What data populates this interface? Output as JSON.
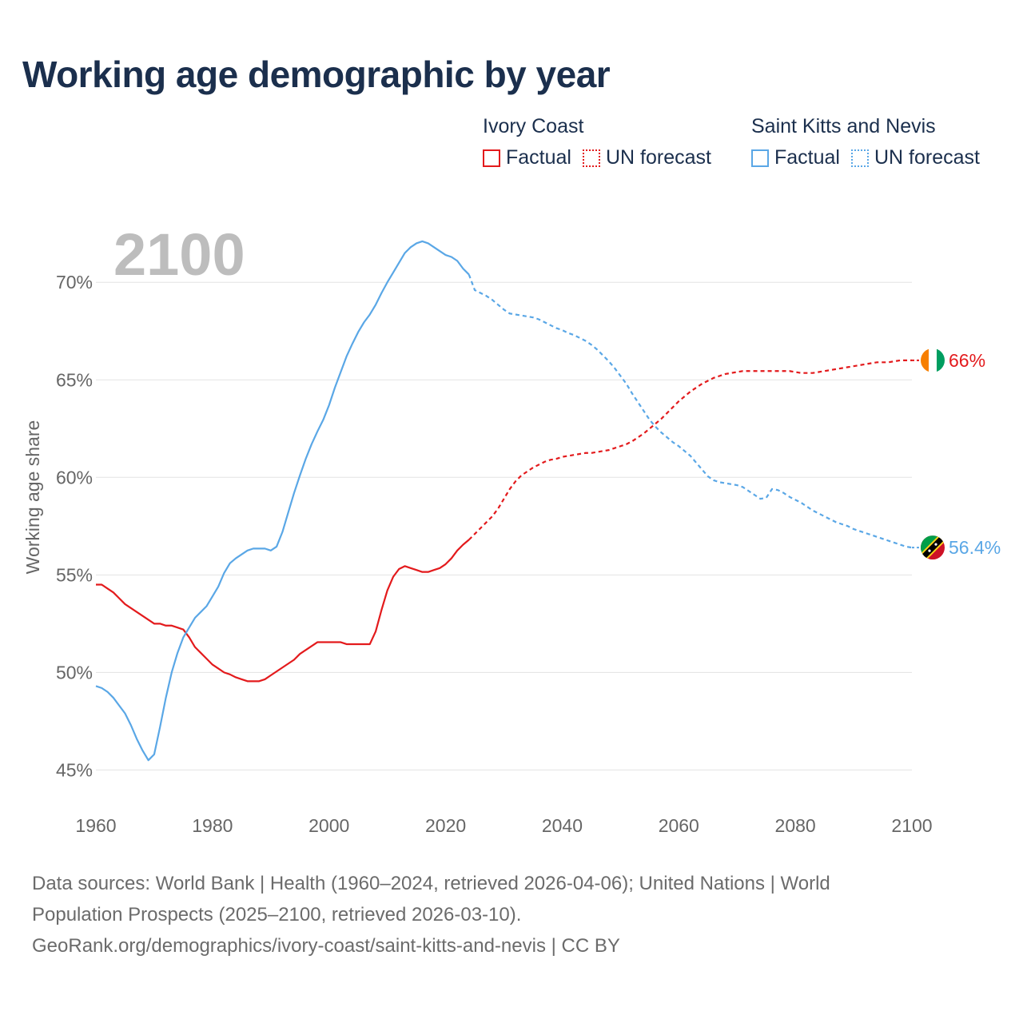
{
  "title": "Working age demographic by year",
  "legend": {
    "groups": [
      {
        "name": "Ivory Coast",
        "color": "#e31a1c",
        "items": [
          {
            "label": "Factual",
            "style": "solid"
          },
          {
            "label": "UN forecast",
            "style": "dotted"
          }
        ]
      },
      {
        "name": "Saint Kitts and Nevis",
        "color": "#5aa7e6",
        "items": [
          {
            "label": "Factual",
            "style": "solid"
          },
          {
            "label": "UN forecast",
            "style": "dotted"
          }
        ]
      }
    ]
  },
  "chart_data": {
    "type": "line",
    "year_label": "2100",
    "ylabel": "Working age share",
    "xlim": [
      1960,
      2100
    ],
    "ylim": [
      43.5,
      73
    ],
    "x_ticks": [
      "1960",
      "1980",
      "2000",
      "2020",
      "2040",
      "2060",
      "2080",
      "2100"
    ],
    "y_ticks": [
      {
        "value": 45,
        "label": "45%"
      },
      {
        "value": 50,
        "label": "50%"
      },
      {
        "value": 55,
        "label": "55%"
      },
      {
        "value": 60,
        "label": "60%"
      },
      {
        "value": 65,
        "label": "65%"
      },
      {
        "value": 70,
        "label": "70%"
      }
    ],
    "factual_until": 2024,
    "series": [
      {
        "name": "Ivory Coast",
        "color": "#e31a1c",
        "end_label": "66%",
        "flag": "ivory-coast",
        "points": [
          [
            1960,
            54.5
          ],
          [
            1961,
            54.5
          ],
          [
            1962,
            54.3
          ],
          [
            1963,
            54.1
          ],
          [
            1964,
            53.8
          ],
          [
            1965,
            53.5
          ],
          [
            1966,
            53.3
          ],
          [
            1967,
            53.1
          ],
          [
            1968,
            52.9
          ],
          [
            1969,
            52.7
          ],
          [
            1970,
            52.5
          ],
          [
            1971,
            52.5
          ],
          [
            1972,
            52.4
          ],
          [
            1973,
            52.4
          ],
          [
            1974,
            52.3
          ],
          [
            1975,
            52.2
          ],
          [
            1976,
            51.8
          ],
          [
            1977,
            51.3
          ],
          [
            1978,
            51.0
          ],
          [
            1979,
            50.7
          ],
          [
            1980,
            50.4
          ],
          [
            1981,
            50.2
          ],
          [
            1982,
            50.0
          ],
          [
            1983,
            49.9
          ],
          [
            1984,
            49.75
          ],
          [
            1985,
            49.65
          ],
          [
            1986,
            49.55
          ],
          [
            1987,
            49.55
          ],
          [
            1988,
            49.55
          ],
          [
            1989,
            49.65
          ],
          [
            1990,
            49.85
          ],
          [
            1991,
            50.05
          ],
          [
            1992,
            50.25
          ],
          [
            1993,
            50.45
          ],
          [
            1994,
            50.65
          ],
          [
            1995,
            50.95
          ],
          [
            1996,
            51.15
          ],
          [
            1997,
            51.35
          ],
          [
            1998,
            51.55
          ],
          [
            1999,
            51.55
          ],
          [
            2000,
            51.55
          ],
          [
            2001,
            51.55
          ],
          [
            2002,
            51.55
          ],
          [
            2003,
            51.45
          ],
          [
            2004,
            51.45
          ],
          [
            2005,
            51.45
          ],
          [
            2006,
            51.45
          ],
          [
            2007,
            51.45
          ],
          [
            2008,
            52.1
          ],
          [
            2009,
            53.2
          ],
          [
            2010,
            54.2
          ],
          [
            2011,
            54.9
          ],
          [
            2012,
            55.3
          ],
          [
            2013,
            55.45
          ],
          [
            2014,
            55.35
          ],
          [
            2015,
            55.25
          ],
          [
            2016,
            55.15
          ],
          [
            2017,
            55.15
          ],
          [
            2018,
            55.25
          ],
          [
            2019,
            55.35
          ],
          [
            2020,
            55.55
          ],
          [
            2021,
            55.85
          ],
          [
            2022,
            56.25
          ],
          [
            2023,
            56.55
          ],
          [
            2024,
            56.8
          ],
          [
            2025,
            57.1
          ],
          [
            2026,
            57.4
          ],
          [
            2027,
            57.7
          ],
          [
            2028,
            58.0
          ],
          [
            2029,
            58.4
          ],
          [
            2030,
            58.9
          ],
          [
            2031,
            59.4
          ],
          [
            2032,
            59.8
          ],
          [
            2033,
            60.1
          ],
          [
            2034,
            60.3
          ],
          [
            2035,
            60.5
          ],
          [
            2036,
            60.65
          ],
          [
            2037,
            60.8
          ],
          [
            2038,
            60.9
          ],
          [
            2039,
            60.95
          ],
          [
            2040,
            61.05
          ],
          [
            2041,
            61.1
          ],
          [
            2042,
            61.15
          ],
          [
            2043,
            61.2
          ],
          [
            2044,
            61.25
          ],
          [
            2045,
            61.25
          ],
          [
            2046,
            61.3
          ],
          [
            2047,
            61.35
          ],
          [
            2048,
            61.4
          ],
          [
            2049,
            61.5
          ],
          [
            2050,
            61.6
          ],
          [
            2051,
            61.7
          ],
          [
            2052,
            61.85
          ],
          [
            2053,
            62.05
          ],
          [
            2054,
            62.25
          ],
          [
            2055,
            62.5
          ],
          [
            2056,
            62.75
          ],
          [
            2057,
            63.0
          ],
          [
            2058,
            63.3
          ],
          [
            2059,
            63.6
          ],
          [
            2060,
            63.9
          ],
          [
            2061,
            64.15
          ],
          [
            2062,
            64.4
          ],
          [
            2063,
            64.6
          ],
          [
            2064,
            64.8
          ],
          [
            2065,
            64.95
          ],
          [
            2066,
            65.1
          ],
          [
            2067,
            65.2
          ],
          [
            2068,
            65.3
          ],
          [
            2069,
            65.35
          ],
          [
            2070,
            65.4
          ],
          [
            2071,
            65.45
          ],
          [
            2072,
            65.45
          ],
          [
            2073,
            65.45
          ],
          [
            2074,
            65.45
          ],
          [
            2075,
            65.45
          ],
          [
            2076,
            65.45
          ],
          [
            2077,
            65.45
          ],
          [
            2078,
            65.45
          ],
          [
            2079,
            65.45
          ],
          [
            2080,
            65.4
          ],
          [
            2081,
            65.35
          ],
          [
            2082,
            65.35
          ],
          [
            2083,
            65.35
          ],
          [
            2084,
            65.4
          ],
          [
            2085,
            65.45
          ],
          [
            2086,
            65.5
          ],
          [
            2087,
            65.55
          ],
          [
            2088,
            65.6
          ],
          [
            2089,
            65.65
          ],
          [
            2090,
            65.7
          ],
          [
            2091,
            65.75
          ],
          [
            2092,
            65.8
          ],
          [
            2093,
            65.85
          ],
          [
            2094,
            65.9
          ],
          [
            2095,
            65.9
          ],
          [
            2096,
            65.9
          ],
          [
            2097,
            65.95
          ],
          [
            2098,
            66.0
          ],
          [
            2099,
            66.0
          ],
          [
            2100,
            66.0
          ]
        ]
      },
      {
        "name": "Saint Kitts and Nevis",
        "color": "#5aa7e6",
        "end_label": "56.4%",
        "flag": "saint-kitts-and-nevis",
        "points": [
          [
            1960,
            49.3
          ],
          [
            1961,
            49.2
          ],
          [
            1962,
            49.0
          ],
          [
            1963,
            48.7
          ],
          [
            1964,
            48.3
          ],
          [
            1965,
            47.9
          ],
          [
            1966,
            47.3
          ],
          [
            1967,
            46.6
          ],
          [
            1968,
            46.0
          ],
          [
            1969,
            45.5
          ],
          [
            1970,
            45.8
          ],
          [
            1971,
            47.2
          ],
          [
            1972,
            48.7
          ],
          [
            1973,
            50.0
          ],
          [
            1974,
            51.0
          ],
          [
            1975,
            51.8
          ],
          [
            1976,
            52.3
          ],
          [
            1977,
            52.8
          ],
          [
            1978,
            53.1
          ],
          [
            1979,
            53.4
          ],
          [
            1980,
            53.9
          ],
          [
            1981,
            54.4
          ],
          [
            1982,
            55.1
          ],
          [
            1983,
            55.6
          ],
          [
            1984,
            55.85
          ],
          [
            1985,
            56.05
          ],
          [
            1986,
            56.25
          ],
          [
            1987,
            56.35
          ],
          [
            1988,
            56.35
          ],
          [
            1989,
            56.35
          ],
          [
            1990,
            56.25
          ],
          [
            1991,
            56.45
          ],
          [
            1992,
            57.2
          ],
          [
            1993,
            58.2
          ],
          [
            1994,
            59.2
          ],
          [
            1995,
            60.1
          ],
          [
            1996,
            60.95
          ],
          [
            1997,
            61.7
          ],
          [
            1998,
            62.35
          ],
          [
            1999,
            62.95
          ],
          [
            2000,
            63.7
          ],
          [
            2001,
            64.6
          ],
          [
            2002,
            65.4
          ],
          [
            2003,
            66.2
          ],
          [
            2004,
            66.85
          ],
          [
            2005,
            67.45
          ],
          [
            2006,
            67.95
          ],
          [
            2007,
            68.35
          ],
          [
            2008,
            68.85
          ],
          [
            2009,
            69.45
          ],
          [
            2010,
            70.0
          ],
          [
            2011,
            70.5
          ],
          [
            2012,
            71.0
          ],
          [
            2013,
            71.5
          ],
          [
            2014,
            71.8
          ],
          [
            2015,
            72.0
          ],
          [
            2016,
            72.1
          ],
          [
            2017,
            72.0
          ],
          [
            2018,
            71.8
          ],
          [
            2019,
            71.6
          ],
          [
            2020,
            71.4
          ],
          [
            2021,
            71.3
          ],
          [
            2022,
            71.1
          ],
          [
            2023,
            70.7
          ],
          [
            2024,
            70.4
          ],
          [
            2025,
            69.6
          ],
          [
            2026,
            69.45
          ],
          [
            2027,
            69.3
          ],
          [
            2028,
            69.1
          ],
          [
            2029,
            68.85
          ],
          [
            2030,
            68.6
          ],
          [
            2031,
            68.4
          ],
          [
            2032,
            68.35
          ],
          [
            2033,
            68.3
          ],
          [
            2034,
            68.25
          ],
          [
            2035,
            68.2
          ],
          [
            2036,
            68.1
          ],
          [
            2037,
            67.95
          ],
          [
            2038,
            67.8
          ],
          [
            2039,
            67.65
          ],
          [
            2040,
            67.55
          ],
          [
            2041,
            67.4
          ],
          [
            2042,
            67.3
          ],
          [
            2043,
            67.15
          ],
          [
            2044,
            67.0
          ],
          [
            2045,
            66.8
          ],
          [
            2046,
            66.55
          ],
          [
            2047,
            66.25
          ],
          [
            2048,
            65.95
          ],
          [
            2049,
            65.6
          ],
          [
            2050,
            65.2
          ],
          [
            2051,
            64.8
          ],
          [
            2052,
            64.3
          ],
          [
            2053,
            63.85
          ],
          [
            2054,
            63.4
          ],
          [
            2055,
            62.95
          ],
          [
            2056,
            62.6
          ],
          [
            2057,
            62.3
          ],
          [
            2058,
            62.05
          ],
          [
            2059,
            61.8
          ],
          [
            2060,
            61.6
          ],
          [
            2061,
            61.35
          ],
          [
            2062,
            61.1
          ],
          [
            2063,
            60.75
          ],
          [
            2064,
            60.4
          ],
          [
            2065,
            60.05
          ],
          [
            2066,
            59.85
          ],
          [
            2067,
            59.75
          ],
          [
            2068,
            59.7
          ],
          [
            2069,
            59.65
          ],
          [
            2070,
            59.6
          ],
          [
            2071,
            59.5
          ],
          [
            2072,
            59.3
          ],
          [
            2073,
            59.1
          ],
          [
            2074,
            58.9
          ],
          [
            2075,
            58.95
          ],
          [
            2076,
            59.4
          ],
          [
            2077,
            59.35
          ],
          [
            2078,
            59.2
          ],
          [
            2079,
            59.0
          ],
          [
            2080,
            58.85
          ],
          [
            2081,
            58.7
          ],
          [
            2082,
            58.5
          ],
          [
            2083,
            58.3
          ],
          [
            2084,
            58.15
          ],
          [
            2085,
            58.0
          ],
          [
            2086,
            57.85
          ],
          [
            2087,
            57.7
          ],
          [
            2088,
            57.6
          ],
          [
            2089,
            57.5
          ],
          [
            2090,
            57.35
          ],
          [
            2091,
            57.25
          ],
          [
            2092,
            57.15
          ],
          [
            2093,
            57.05
          ],
          [
            2094,
            56.95
          ],
          [
            2095,
            56.85
          ],
          [
            2096,
            56.75
          ],
          [
            2097,
            56.65
          ],
          [
            2098,
            56.55
          ],
          [
            2099,
            56.45
          ],
          [
            2100,
            56.4
          ]
        ]
      }
    ]
  },
  "footer": {
    "line1": "Data sources: World Bank | Health (1960–2024, retrieved 2026-04-06); United Nations | World",
    "line2": "Population Prospects (2025–2100, retrieved 2026-03-10).",
    "line3": "GeoRank.org/demographics/ivory-coast/saint-kitts-and-nevis | CC BY"
  }
}
